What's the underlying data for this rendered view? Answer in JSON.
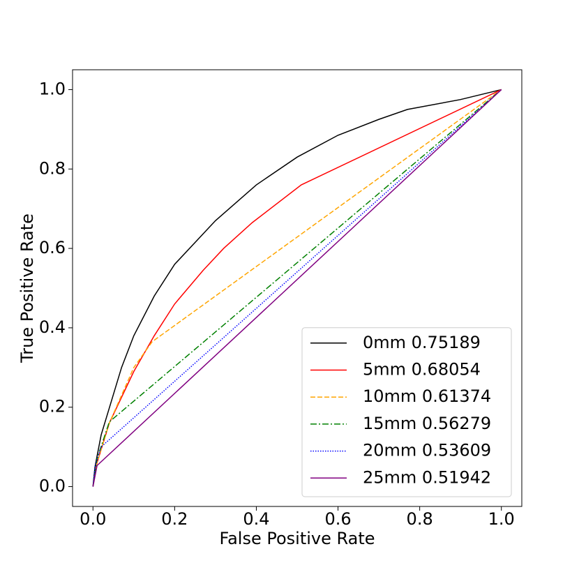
{
  "chart_data": {
    "type": "line",
    "xlabel": "False Positive Rate",
    "ylabel": "True Positive Rate",
    "xlim": [
      -0.05,
      1.05
    ],
    "ylim": [
      -0.05,
      1.05
    ],
    "xticks": [
      {
        "value": 0,
        "label": "0.0"
      },
      0.2,
      0.4,
      0.6,
      0.8,
      {
        "value": 1,
        "label": "1.0"
      }
    ],
    "yticks": [
      {
        "value": 0,
        "label": "0.0"
      },
      0.2,
      0.4,
      0.6,
      0.8,
      {
        "value": 1,
        "label": "1.0"
      }
    ],
    "legend": "lower right",
    "series": [
      {
        "name": "0mm 0.75189",
        "color": "#000000",
        "linestyle": "solid",
        "x": [
          0,
          0.005,
          0.02,
          0.07,
          0.1,
          0.15,
          0.2,
          0.3,
          0.4,
          0.5,
          0.6,
          0.7,
          0.77,
          0.9,
          1
        ],
        "values": [
          0,
          0.05,
          0.13,
          0.3,
          0.38,
          0.48,
          0.56,
          0.67,
          0.76,
          0.83,
          0.885,
          0.925,
          0.95,
          0.975,
          1
        ]
      },
      {
        "name": "5mm 0.68054",
        "color": "#ff0000",
        "linestyle": "solid",
        "x": [
          0,
          0.01,
          0.04,
          0.1,
          0.15,
          0.2,
          0.27,
          0.32,
          0.39,
          0.51,
          1
        ],
        "values": [
          0,
          0.06,
          0.16,
          0.29,
          0.38,
          0.46,
          0.545,
          0.6,
          0.665,
          0.76,
          1
        ]
      },
      {
        "name": "10mm 0.61374",
        "color": "#ffa500",
        "linestyle": "dashed",
        "x": [
          0,
          0.01,
          0.04,
          0.1,
          0.145,
          1
        ],
        "values": [
          0,
          0.06,
          0.16,
          0.3,
          0.365,
          1
        ]
      },
      {
        "name": "15mm 0.56279",
        "color": "#008000",
        "linestyle": "dashdot",
        "x": [
          0,
          0.01,
          0.04,
          1
        ],
        "values": [
          0,
          0.07,
          0.163,
          1
        ]
      },
      {
        "name": "20mm 0.53609",
        "color": "#0000ff",
        "linestyle": "dotted",
        "x": [
          0,
          0.005,
          0.02,
          1
        ],
        "values": [
          0,
          0.05,
          0.1,
          1
        ]
      },
      {
        "name": "25mm 0.51942",
        "color": "#800080",
        "linestyle": "solid",
        "x": [
          0,
          0.01,
          1
        ],
        "values": [
          0,
          0.053,
          1
        ]
      }
    ]
  }
}
